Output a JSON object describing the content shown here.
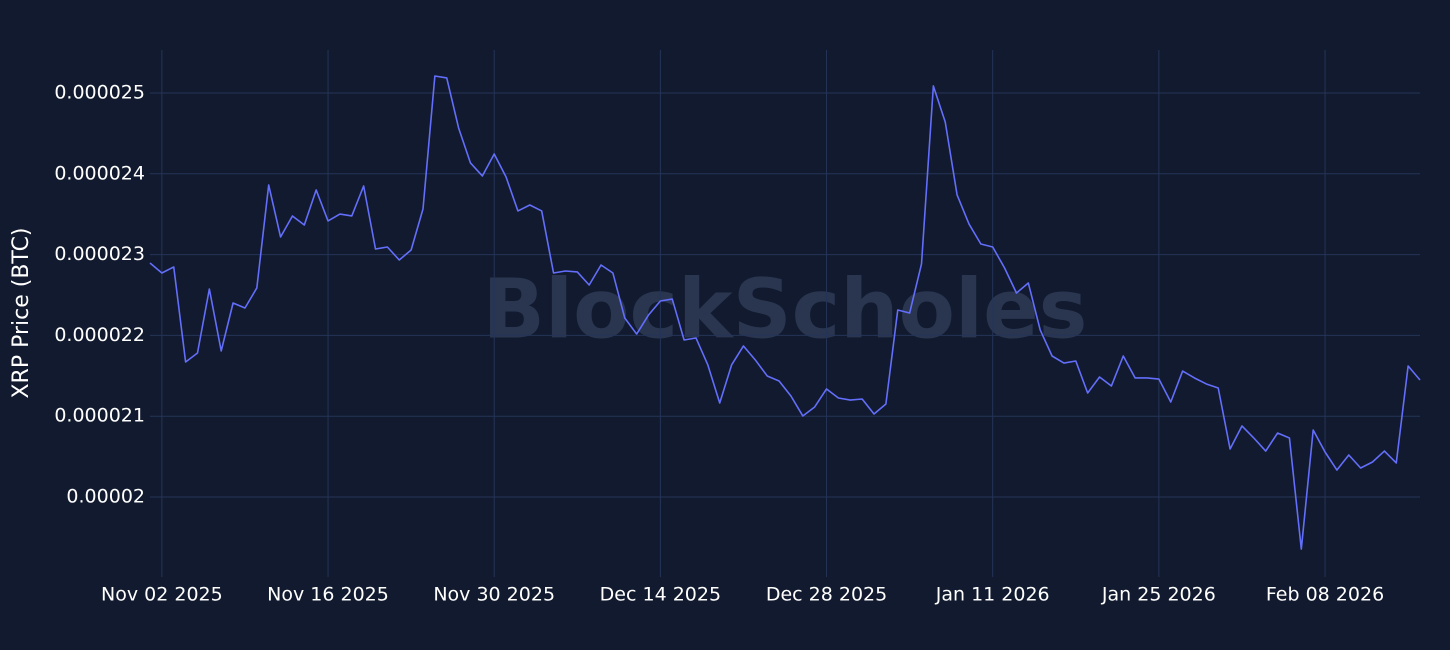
{
  "chart_data": {
    "type": "line",
    "y_label": "XRP Price (BTC)",
    "watermark": "BlockScholes",
    "color": "#636efa",
    "grid": true,
    "x": [
      "2025-11-01",
      "2025-11-02",
      "2025-11-03",
      "2025-11-04",
      "2025-11-05",
      "2025-11-06",
      "2025-11-07",
      "2025-11-08",
      "2025-11-09",
      "2025-11-10",
      "2025-11-11",
      "2025-11-12",
      "2025-11-13",
      "2025-11-14",
      "2025-11-15",
      "2025-11-16",
      "2025-11-17",
      "2025-11-18",
      "2025-11-19",
      "2025-11-20",
      "2025-11-21",
      "2025-11-22",
      "2025-11-23",
      "2025-11-24",
      "2025-11-25",
      "2025-11-26",
      "2025-11-27",
      "2025-11-28",
      "2025-11-29",
      "2025-11-30",
      "2025-12-01",
      "2025-12-02",
      "2025-12-03",
      "2025-12-04",
      "2025-12-05",
      "2025-12-06",
      "2025-12-07",
      "2025-12-08",
      "2025-12-09",
      "2025-12-10",
      "2025-12-11",
      "2025-12-12",
      "2025-12-13",
      "2025-12-14",
      "2025-12-15",
      "2025-12-16",
      "2025-12-17",
      "2025-12-18",
      "2025-12-19",
      "2025-12-20",
      "2025-12-21",
      "2025-12-22",
      "2025-12-23",
      "2025-12-24",
      "2025-12-25",
      "2025-12-26",
      "2025-12-27",
      "2025-12-28",
      "2025-12-29",
      "2025-12-30",
      "2025-12-31",
      "2026-01-01",
      "2026-01-02",
      "2026-01-03",
      "2026-01-04",
      "2026-01-05",
      "2026-01-06",
      "2026-01-07",
      "2026-01-08",
      "2026-01-09",
      "2026-01-10",
      "2026-01-11",
      "2026-01-12",
      "2026-01-13",
      "2026-01-14",
      "2026-01-15",
      "2026-01-16",
      "2026-01-17",
      "2026-01-18",
      "2026-01-19",
      "2026-01-20",
      "2026-01-21",
      "2026-01-22",
      "2026-01-23",
      "2026-01-24",
      "2026-01-25",
      "2026-01-26",
      "2026-01-27",
      "2026-01-28",
      "2026-01-29",
      "2026-01-30",
      "2026-01-31",
      "2026-02-01",
      "2026-02-02",
      "2026-02-03",
      "2026-02-04",
      "2026-02-05",
      "2026-02-06",
      "2026-02-07",
      "2026-02-08",
      "2026-02-09",
      "2026-02-10",
      "2026-02-11",
      "2026-02-12",
      "2026-02-13",
      "2026-02-14",
      "2026-02-15",
      "2026-02-16"
    ],
    "values": [
      2.2896e-05,
      2.2772e-05,
      2.2847e-05,
      2.1671e-05,
      2.1782e-05,
      2.2574e-05,
      2.1807e-05,
      2.2401e-05,
      2.2339e-05,
      2.2587e-05,
      2.3861e-05,
      2.3218e-05,
      2.3478e-05,
      2.3366e-05,
      2.38e-05,
      2.3416e-05,
      2.3502e-05,
      2.3478e-05,
      2.3849e-05,
      2.3069e-05,
      2.3094e-05,
      2.2933e-05,
      2.3057e-05,
      2.3564e-05,
      2.521e-05,
      2.5186e-05,
      2.4567e-05,
      2.4134e-05,
      2.3973e-05,
      2.4245e-05,
      2.396e-05,
      2.354e-05,
      2.3614e-05,
      2.354e-05,
      2.2772e-05,
      2.2797e-05,
      2.2785e-05,
      2.2624e-05,
      2.2871e-05,
      2.2772e-05,
      2.2215e-05,
      2.2017e-05,
      2.2252e-05,
      2.2426e-05,
      2.245e-05,
      2.1943e-05,
      2.1968e-05,
      2.1634e-05,
      2.1163e-05,
      2.1634e-05,
      2.1869e-05,
      2.1696e-05,
      2.1498e-05,
      2.1436e-05,
      2.125e-05,
      2.1003e-05,
      2.1114e-05,
      2.1337e-05,
      2.1225e-05,
      2.12e-05,
      2.1213e-05,
      2.1027e-05,
      2.1151e-05,
      2.2314e-05,
      2.2277e-05,
      2.2884e-05,
      2.5087e-05,
      2.4641e-05,
      2.3738e-05,
      2.3379e-05,
      2.3131e-05,
      2.3094e-05,
      2.2834e-05,
      2.2525e-05,
      2.2649e-05,
      2.2067e-05,
      2.1745e-05,
      2.1658e-05,
      2.1683e-05,
      2.1287e-05,
      2.1485e-05,
      2.1374e-05,
      2.1745e-05,
      2.1473e-05,
      2.1473e-05,
      2.146e-05,
      2.1176e-05,
      2.1559e-05,
      2.1473e-05,
      2.1399e-05,
      2.1349e-05,
      2.0594e-05,
      2.0879e-05,
      2.073e-05,
      2.0569e-05,
      2.0792e-05,
      2.073e-05,
      1.9356e-05,
      2.0829e-05,
      2.0557e-05,
      2.0334e-05,
      2.052e-05,
      2.0359e-05,
      2.0433e-05,
      2.0569e-05,
      2.0421e-05,
      2.1621e-05,
      2.1448e-05
    ],
    "xlim": [
      "2025-11-01",
      "2026-02-16"
    ],
    "xticks": [
      {
        "value": "2025-11-02",
        "label": "Nov 02 2025"
      },
      {
        "value": "2025-11-16",
        "label": "Nov 16 2025"
      },
      {
        "value": "2025-11-30",
        "label": "Nov 30 2025"
      },
      {
        "value": "2025-12-14",
        "label": "Dec 14 2025"
      },
      {
        "value": "2025-12-28",
        "label": "Dec 28 2025"
      },
      {
        "value": "2026-01-11",
        "label": "Jan 11 2026"
      },
      {
        "value": "2026-01-25",
        "label": "Jan 25 2026"
      },
      {
        "value": "2026-02-08",
        "label": "Feb 08 2026"
      }
    ],
    "ylim": [
      1.901e-05,
      2.5532e-05
    ],
    "yticks": [
      2e-05,
      2.1e-05,
      2.2e-05,
      2.3e-05,
      2.4e-05,
      2.5e-05
    ]
  }
}
